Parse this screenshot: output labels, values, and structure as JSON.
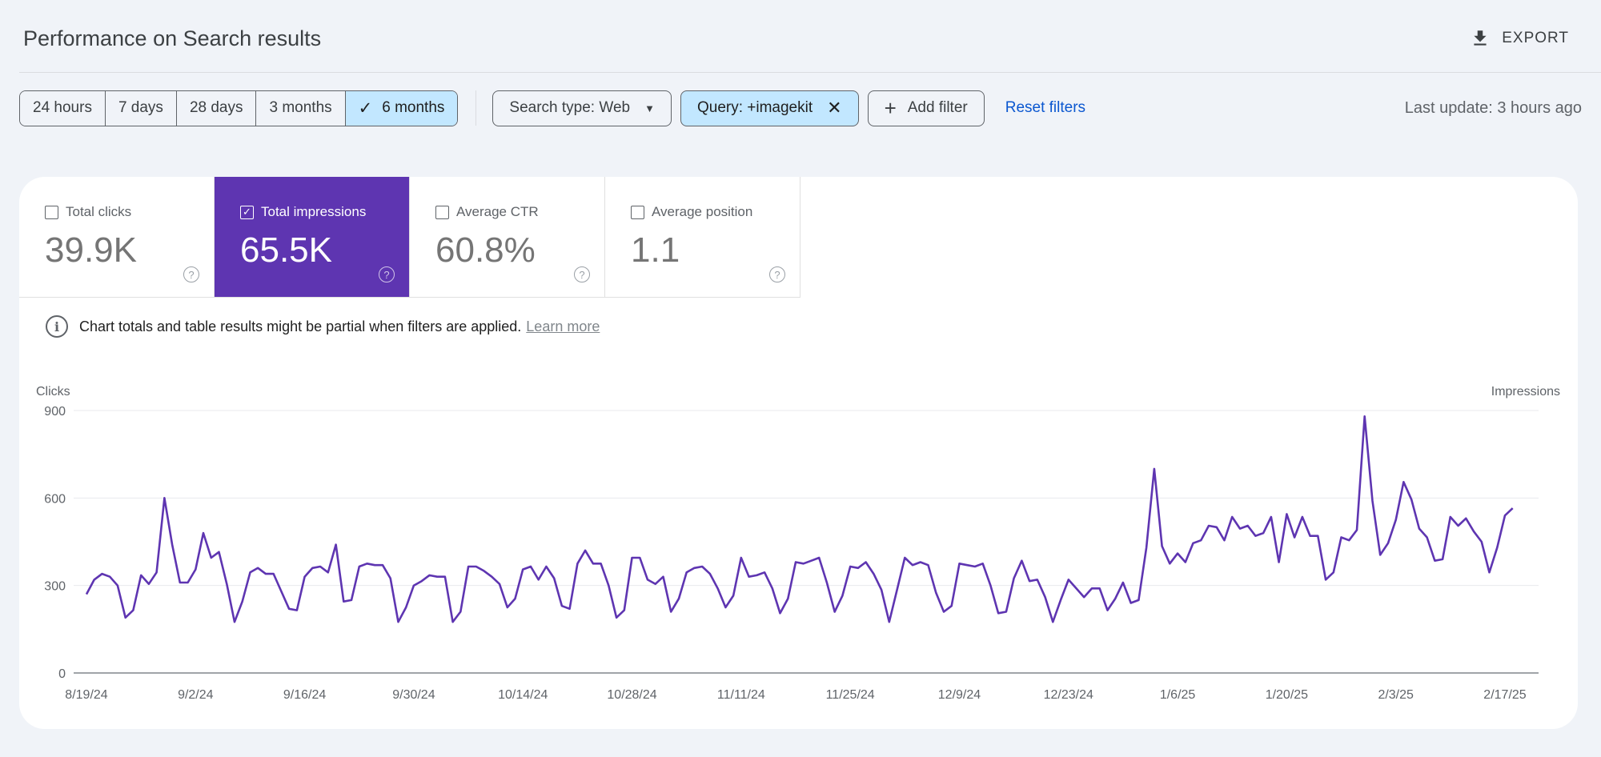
{
  "header": {
    "title": "Performance on Search results",
    "export_label": "EXPORT"
  },
  "toolbar": {
    "ranges": [
      "24 hours",
      "7 days",
      "28 days",
      "3 months",
      "6 months"
    ],
    "selected_check": "✓",
    "search_type": "Search type: Web",
    "query_filter": "Query: +imagekit",
    "add_filter": "Add filter",
    "reset_filters": "Reset filters",
    "last_update": "Last update: 3 hours ago"
  },
  "metrics": [
    {
      "label": "Total clicks",
      "value": "39.9K",
      "checked": false
    },
    {
      "label": "Total impressions",
      "value": "65.5K",
      "checked": true
    },
    {
      "label": "Average CTR",
      "value": "60.8%",
      "checked": false
    },
    {
      "label": "Average position",
      "value": "1.1",
      "checked": false
    }
  ],
  "notice": {
    "text": "Chart totals and table results might be partial when filters are applied.",
    "link": "Learn more"
  },
  "colors": {
    "accent": "#5e35b1",
    "line": "#5e35b1",
    "selected_chip": "#c2e7ff",
    "link": "#0b57d0"
  },
  "chart_data": {
    "type": "line",
    "left_axis_label": "Clicks",
    "right_axis_label": "Impressions",
    "y_ticks": [
      "900",
      "600",
      "300",
      "0"
    ],
    "ylim": [
      0,
      900
    ],
    "x_ticks": [
      "8/19/24",
      "9/2/24",
      "9/16/24",
      "9/30/24",
      "10/14/24",
      "10/28/24",
      "11/11/24",
      "11/25/24",
      "12/9/24",
      "12/23/24",
      "1/6/25",
      "1/20/25",
      "2/3/25",
      "2/17/25"
    ],
    "x_range": [
      "2024-08-19",
      "2025-02-17"
    ],
    "series": [
      {
        "start_date": "2024-08-19",
        "values": [
          270,
          320,
          340,
          330,
          300,
          190,
          215,
          335,
          305,
          345,
          600,
          440,
          310,
          310,
          355,
          480,
          395,
          415,
          305,
          175,
          245,
          345,
          360,
          340,
          340,
          280,
          220,
          215,
          330,
          360,
          365,
          345,
          440,
          245,
          250,
          365,
          375,
          370,
          370,
          325,
          175,
          225,
          300,
          315,
          335,
          330,
          330,
          175,
          210,
          365,
          365,
          350,
          330,
          305,
          225,
          255,
          355,
          365,
          320,
          365,
          325,
          230,
          220,
          375,
          420,
          375,
          375,
          300,
          190,
          215,
          395,
          395,
          320,
          305,
          330,
          210,
          255,
          345,
          360,
          365,
          340,
          290,
          225,
          265,
          395,
          330,
          335,
          345,
          290,
          205,
          255,
          380,
          375,
          385,
          395,
          310,
          210,
          265,
          365,
          360,
          380,
          340,
          285,
          175,
          285,
          395,
          370,
          380,
          370,
          275,
          210,
          230,
          375,
          370,
          365,
          375,
          300,
          205,
          210,
          325,
          385,
          315,
          320,
          260,
          175,
          250,
          320,
          290,
          260,
          290,
          290,
          215,
          255,
          310,
          240,
          250,
          430,
          700,
          435,
          375,
          410,
          380,
          445,
          455,
          505,
          500,
          455,
          535,
          495,
          505,
          470,
          480,
          535,
          380,
          545,
          465,
          535,
          470,
          470,
          320,
          345,
          465,
          455,
          490,
          880,
          590,
          405,
          445,
          525,
          655,
          595,
          495,
          465,
          385,
          390,
          535,
          505,
          530,
          485,
          450,
          345,
          430,
          540,
          565
        ]
      }
    ]
  }
}
